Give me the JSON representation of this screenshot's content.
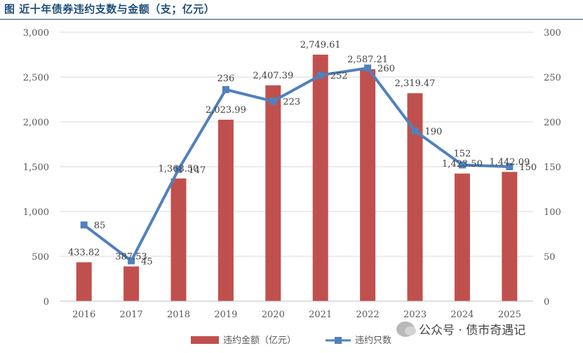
{
  "title": "图 近十年债券违约支数与金额（支；亿元）",
  "watermark": "公众号 · 债市奇遇记",
  "colors": {
    "bar": "#c0504d",
    "line": "#4f81bd",
    "title": "#1f4e79",
    "text": "#595959",
    "grid": "#d9d9d9"
  },
  "chart_data": {
    "type": "bar",
    "categories": [
      "2016",
      "2017",
      "2018",
      "2019",
      "2020",
      "2021",
      "2022",
      "2023",
      "2024",
      "2025"
    ],
    "series": [
      {
        "name": "违约金额（亿元）",
        "type": "bar",
        "axis": "left",
        "values": [
          433.82,
          387.53,
          1368.5,
          2023.99,
          2407.39,
          2749.61,
          2587.21,
          2319.47,
          1423.5,
          1442.09
        ],
        "labels": [
          "433.82",
          "387.53",
          "1,368.50",
          "2,023.99",
          "2,407.39",
          "2,749.61",
          "2,587.21",
          "2,319.47",
          "1,423.50",
          "1,442.09"
        ]
      },
      {
        "name": "违约只数",
        "type": "line",
        "axis": "right",
        "values": [
          85,
          45,
          147,
          236,
          223,
          252,
          260,
          190,
          152,
          150
        ],
        "labels": [
          "85",
          "45",
          "147",
          "236",
          "223",
          "252",
          "260",
          "190",
          "152",
          "150"
        ]
      }
    ],
    "y_left": {
      "min": 0,
      "max": 3000,
      "ticks": [
        "0",
        "500",
        "1,000",
        "1,500",
        "2,000",
        "2,500",
        "3,000"
      ]
    },
    "y_right": {
      "min": 0,
      "max": 300,
      "ticks": [
        "0",
        "50",
        "100",
        "150",
        "200",
        "250",
        "300"
      ]
    },
    "grid": true,
    "legend": "bottom-center"
  }
}
